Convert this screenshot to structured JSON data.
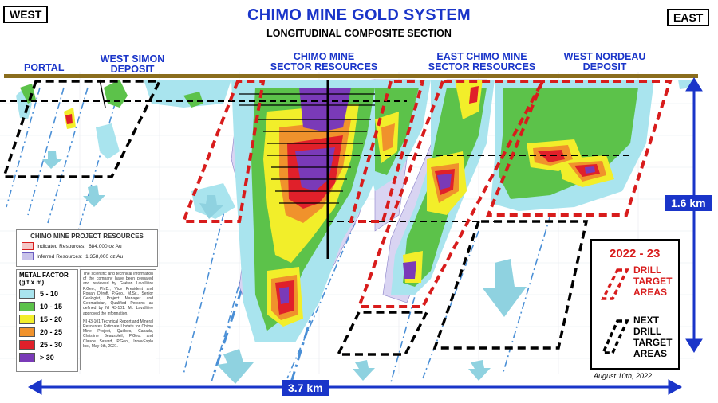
{
  "header": {
    "west": "WEST",
    "east": "EAST",
    "title": "CHIMO MINE GOLD SYSTEM",
    "subtitle": "LONGITUDINAL COMPOSITE SECTION"
  },
  "deposits": {
    "portal": "PORTAL",
    "west_simon_1": "WEST SIMON",
    "west_simon_2": "DEPOSIT",
    "chimo_1": "CHIMO MINE",
    "chimo_2": "SECTOR RESOURCES",
    "east_chimo_1": "EAST CHIMO MINE",
    "east_chimo_2": "SECTOR RESOURCES",
    "west_nordeau_1": "WEST NORDEAU",
    "west_nordeau_2": "DEPOSIT"
  },
  "resources_legend": {
    "title": "CHIMO MINE PROJECT RESOURCES",
    "indicated_label": "Indicated Resources:",
    "indicated_value": "684,000 oz Au",
    "inferred_label": "Inferred Resources:",
    "inferred_value": "1,358,000 oz Au",
    "indicated_color": "#f4c6c6",
    "inferred_color": "#c8c2ea"
  },
  "metal_factor": {
    "title_1": "METAL FACTOR",
    "title_2": "(g/t x m)",
    "classes": [
      {
        "label": "5 - 10",
        "color": "#a9e4ee"
      },
      {
        "label": "10 - 15",
        "color": "#5cc24a"
      },
      {
        "label": "15 - 20",
        "color": "#f2ee2a"
      },
      {
        "label": "20 - 25",
        "color": "#f0922c"
      },
      {
        "label": "25 - 30",
        "color": "#e0202a"
      },
      {
        "label": "> 30",
        "color": "#7a3ab8"
      }
    ]
  },
  "disclaimer": {
    "p1": "The scientific and technical information of the company have been prepared and reviewed by Gaétan Lavallière P.Geo., Ph.D., Vice President and Ronan Déroff, P.Geo., M.Sc., Senior Geologist, Project Manager and Geomatician, Qualified Persons as defined by NI 43-101. Mr. Lavallière approved the information.",
    "p2": "NI 43-101 Technical Report and Mineral Resources Estimate Update for Chimo Mine Project, Québec, Canada, Christine Beausoleil, P.Geo. and Claude Savard, P.Geo., InnovExplo Inc., May 6th, 2021."
  },
  "drill_legend": {
    "year": "2022 - 23",
    "target_1": "DRILL",
    "target_2": "TARGET",
    "target_3": "AREAS",
    "next_1": "NEXT",
    "next_2": "DRILL",
    "next_3": "TARGET",
    "next_4": "AREAS",
    "red": "#d81c1c"
  },
  "scale": {
    "vertical": "1.6 km",
    "horizontal": "3.7 km",
    "arrow_color": "#1a35c9"
  },
  "date": "August 10th, 2022"
}
